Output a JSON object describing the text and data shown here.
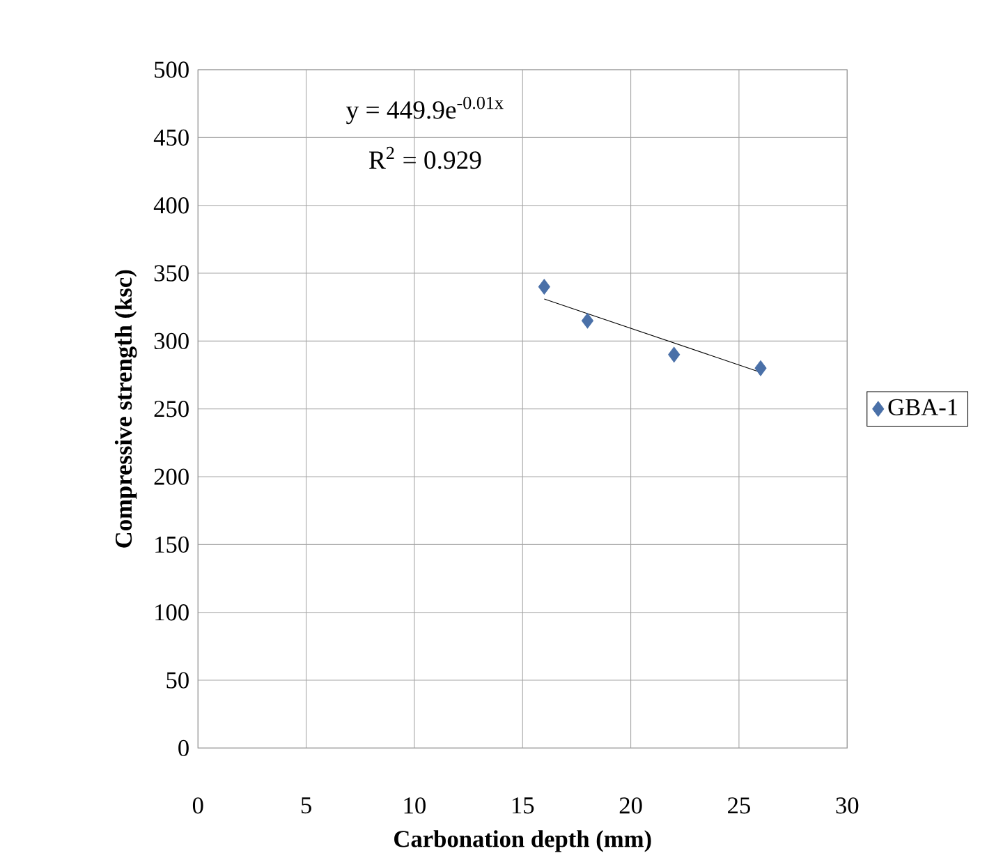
{
  "chart_data": {
    "type": "scatter",
    "xlabel": "Carbonation depth (mm)",
    "ylabel": "Compressive strength (ksc)",
    "series": [
      {
        "name": "GBA-1",
        "color": "#4a70a8",
        "marker": "diamond",
        "x": [
          16,
          18,
          22,
          26
        ],
        "values": [
          340,
          315,
          290,
          280
        ]
      },
      {
        "type": "line",
        "color": "#000000",
        "marker": "none",
        "x": [
          16,
          26
        ],
        "values": [
          331,
          277
        ]
      }
    ],
    "annotations": [
      "y = 449.9e$^{-0.01x}$",
      "R$^{2}$ = 0.929"
    ],
    "xlim": [
      0,
      30
    ],
    "xticks": [
      0,
      5,
      10,
      15,
      20,
      25,
      30
    ],
    "ylim": [
      0,
      500
    ],
    "yticks": [
      0,
      50,
      100,
      150,
      200,
      250,
      300,
      350,
      400,
      450,
      500
    ],
    "grid": true,
    "legend": "right"
  }
}
